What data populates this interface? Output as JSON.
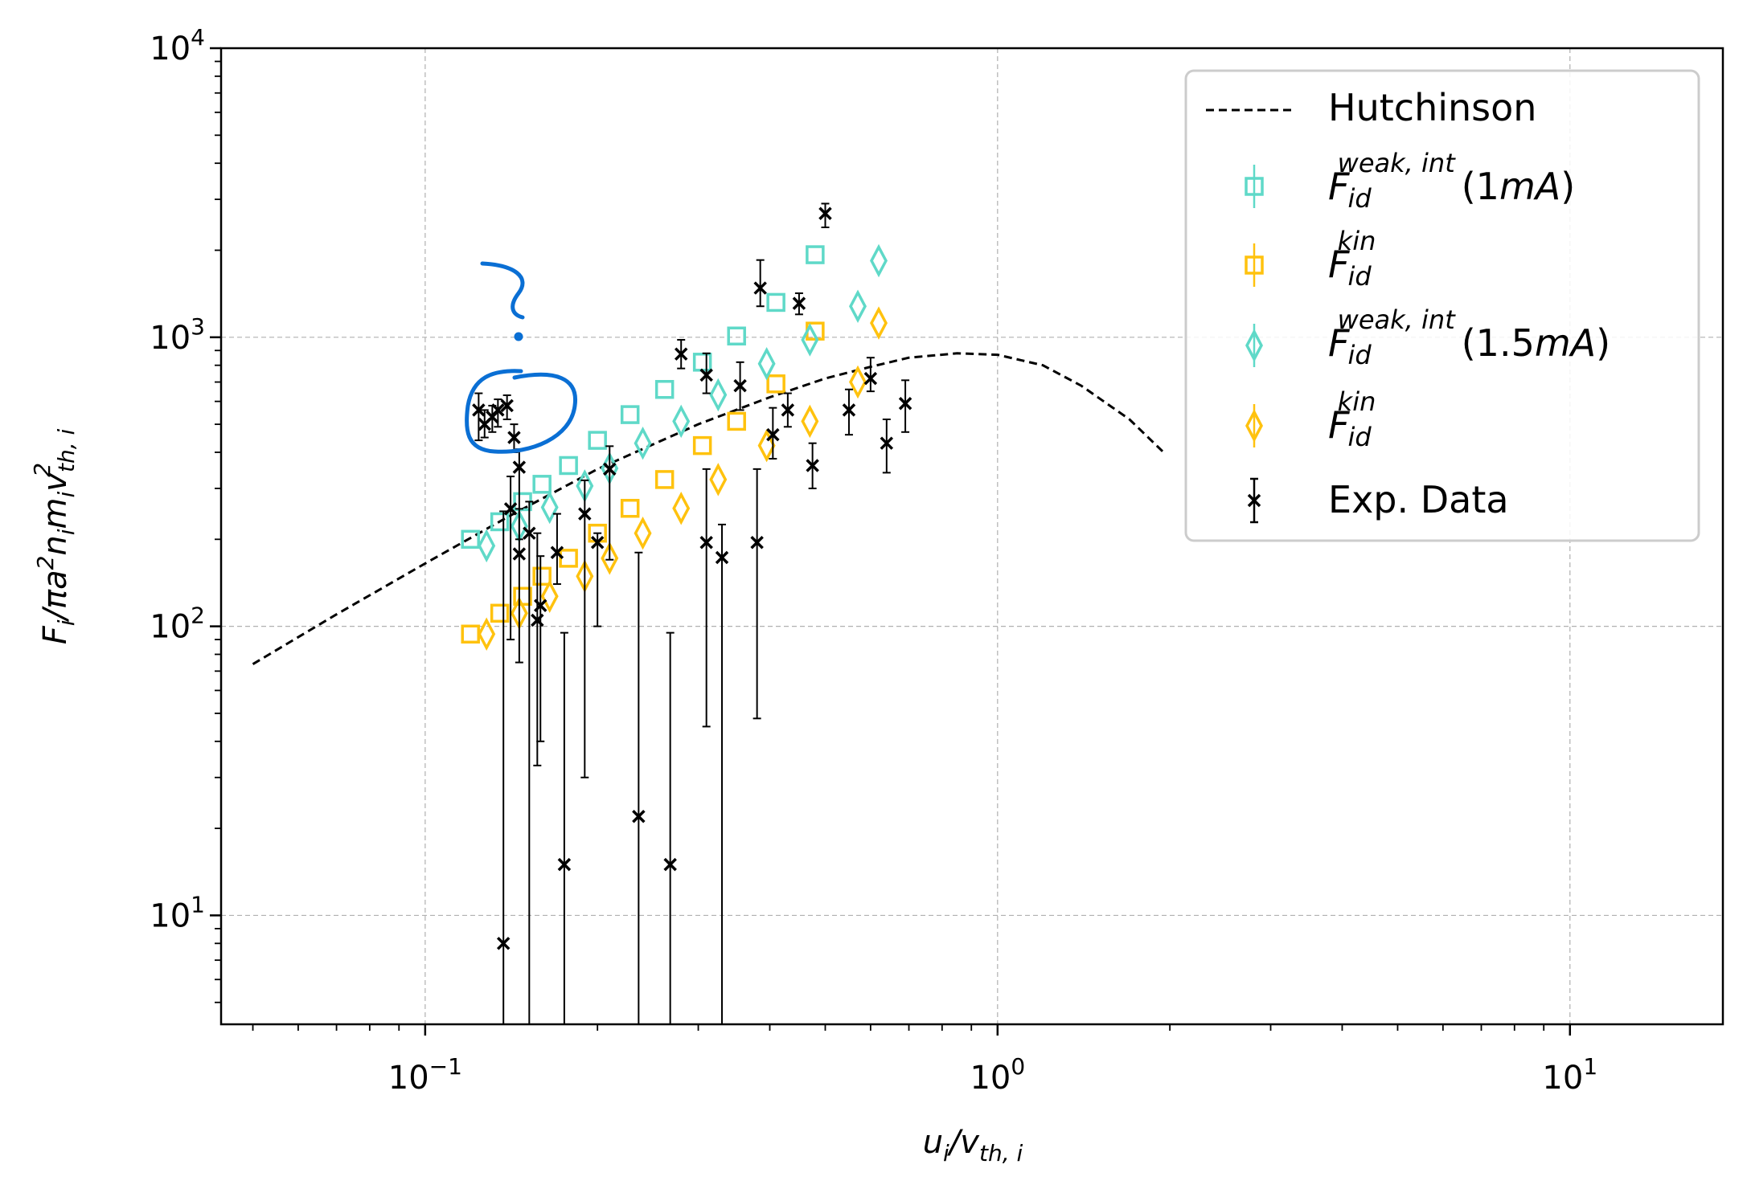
{
  "chart_data": {
    "type": "scatter",
    "title": "",
    "xscale": "log",
    "yscale": "log",
    "xlim": [
      0.044,
      18.5
    ],
    "ylim": [
      4.2,
      10000
    ],
    "grid": true,
    "legend_position": "top-right",
    "xlabel": {
      "main": "u",
      "sub_main": "i",
      "slash": "/v",
      "sub": "th, i"
    },
    "ylabel": {
      "main": "F",
      "sub_main": "i",
      "rest": "/πa",
      "sup_a": "2",
      "n": "n",
      "sub_n": "i",
      "m": "m",
      "sub_m": "i",
      "v": "v",
      "sub_v": "th, i",
      "sup_v": "2"
    },
    "x_ticks": [
      {
        "value": 0.1,
        "base": "10",
        "exp": "−1"
      },
      {
        "value": 1,
        "base": "10",
        "exp": "0"
      },
      {
        "value": 10,
        "base": "10",
        "exp": "1"
      }
    ],
    "y_ticks": [
      {
        "value": 10,
        "base": "10",
        "exp": "1"
      },
      {
        "value": 100,
        "base": "10",
        "exp": "2"
      },
      {
        "value": 1000,
        "base": "10",
        "exp": "3"
      },
      {
        "value": 10000,
        "base": "10",
        "exp": "4"
      }
    ],
    "series": [
      {
        "name": "Hutchinson",
        "kind": "line",
        "color": "#000000",
        "points": [
          [
            0.05,
            74
          ],
          [
            0.07,
            110
          ],
          [
            0.1,
            165
          ],
          [
            0.14,
            240
          ],
          [
            0.2,
            350
          ],
          [
            0.3,
            500
          ],
          [
            0.4,
            620
          ],
          [
            0.5,
            720
          ],
          [
            0.6,
            790
          ],
          [
            0.7,
            850
          ],
          [
            0.85,
            880
          ],
          [
            1.0,
            870
          ],
          [
            1.2,
            800
          ],
          [
            1.4,
            680
          ],
          [
            1.7,
            520
          ],
          [
            1.95,
            400
          ]
        ]
      },
      {
        "name": "F_id^{weak,int} (1mA)",
        "kind": "square",
        "color": "#5fd9c8",
        "points": [
          [
            0.12,
            200
          ],
          [
            0.135,
            230
          ],
          [
            0.148,
            270
          ],
          [
            0.16,
            310
          ],
          [
            0.178,
            360
          ],
          [
            0.2,
            440
          ],
          [
            0.228,
            540
          ],
          [
            0.262,
            660
          ],
          [
            0.305,
            820
          ],
          [
            0.35,
            1010
          ],
          [
            0.41,
            1320
          ],
          [
            0.48,
            1930
          ]
        ]
      },
      {
        "name": "F_id^{kin}",
        "kind": "square",
        "color": "#ffc20e",
        "points": [
          [
            0.12,
            94
          ],
          [
            0.135,
            111
          ],
          [
            0.148,
            127
          ],
          [
            0.16,
            149
          ],
          [
            0.178,
            172
          ],
          [
            0.2,
            210
          ],
          [
            0.228,
            256
          ],
          [
            0.262,
            322
          ],
          [
            0.305,
            422
          ],
          [
            0.35,
            512
          ],
          [
            0.41,
            690
          ],
          [
            0.48,
            1050
          ]
        ]
      },
      {
        "name": "F_id^{weak,int} (1.5mA)",
        "kind": "diamond",
        "color": "#5fd9c8",
        "points": [
          [
            0.128,
            190
          ],
          [
            0.146,
            222
          ],
          [
            0.165,
            258
          ],
          [
            0.19,
            306
          ],
          [
            0.21,
            352
          ],
          [
            0.24,
            430
          ],
          [
            0.28,
            512
          ],
          [
            0.325,
            632
          ],
          [
            0.395,
            810
          ],
          [
            0.47,
            980
          ],
          [
            0.57,
            1280
          ],
          [
            0.62,
            1840
          ]
        ]
      },
      {
        "name": "F_id^{kin}",
        "kind": "diamond",
        "color": "#ffc20e",
        "points": [
          [
            0.128,
            94
          ],
          [
            0.146,
            111
          ],
          [
            0.165,
            127
          ],
          [
            0.19,
            149
          ],
          [
            0.21,
            172
          ],
          [
            0.24,
            210
          ],
          [
            0.28,
            256
          ],
          [
            0.325,
            322
          ],
          [
            0.395,
            422
          ],
          [
            0.47,
            512
          ],
          [
            0.57,
            700
          ],
          [
            0.62,
            1120
          ]
        ]
      },
      {
        "name": "Exp. Data",
        "kind": "errorbar",
        "color": "#000000",
        "points": [
          [
            0.124,
            560,
            440,
            640
          ],
          [
            0.127,
            500,
            450,
            560
          ],
          [
            0.131,
            530,
            470,
            580
          ],
          [
            0.134,
            560,
            490,
            610
          ],
          [
            0.139,
            580,
            520,
            630
          ],
          [
            0.143,
            450,
            400,
            500
          ],
          [
            0.137,
            8,
            1,
            250
          ],
          [
            0.141,
            255,
            90,
            330
          ],
          [
            0.146,
            355,
            200,
            410
          ],
          [
            0.146,
            178,
            75,
            255
          ],
          [
            0.152,
            210,
            1,
            270
          ],
          [
            0.157,
            105,
            33,
            210
          ],
          [
            0.159,
            118,
            40,
            175
          ],
          [
            0.175,
            15,
            1,
            95
          ],
          [
            0.17,
            180,
            140,
            245
          ],
          [
            0.19,
            245,
            30,
            320
          ],
          [
            0.2,
            195,
            100,
            210
          ],
          [
            0.21,
            350,
            170,
            420
          ],
          [
            0.236,
            22,
            1,
            180
          ],
          [
            0.268,
            15,
            1,
            95
          ],
          [
            0.31,
            195,
            45,
            350
          ],
          [
            0.33,
            173,
            1,
            225
          ],
          [
            0.38,
            195,
            48,
            350
          ],
          [
            0.28,
            875,
            780,
            980
          ],
          [
            0.31,
            740,
            640,
            880
          ],
          [
            0.355,
            680,
            560,
            820
          ],
          [
            0.385,
            1480,
            1280,
            1850
          ],
          [
            0.405,
            460,
            380,
            570
          ],
          [
            0.45,
            1310,
            1200,
            1420
          ],
          [
            0.5,
            2680,
            2400,
            2900
          ],
          [
            0.43,
            560,
            490,
            640
          ],
          [
            0.475,
            360,
            300,
            430
          ],
          [
            0.55,
            560,
            460,
            660
          ],
          [
            0.6,
            720,
            650,
            850
          ],
          [
            0.64,
            430,
            340,
            520
          ],
          [
            0.69,
            590,
            470,
            710
          ]
        ]
      }
    ]
  },
  "legend": {
    "items": [
      {
        "id": "hutch",
        "label": "Hutchinson"
      },
      {
        "id": "weak1",
        "F": "F",
        "sub": "id",
        "sup": "weak, int",
        "tail": "(1",
        "unit": "mA",
        "close": ")"
      },
      {
        "id": "kin1",
        "F": "F",
        "sub": "id",
        "sup": "kin"
      },
      {
        "id": "weak15",
        "F": "F",
        "sub": "id",
        "sup": "weak, int",
        "tail": "(1.5",
        "unit": "mA",
        "close": ")"
      },
      {
        "id": "kin15",
        "F": "F",
        "sub": "id",
        "sup": "kin"
      },
      {
        "id": "exp",
        "label": "Exp. Data"
      }
    ]
  },
  "annotation": {
    "color": "#0a6fd4"
  }
}
